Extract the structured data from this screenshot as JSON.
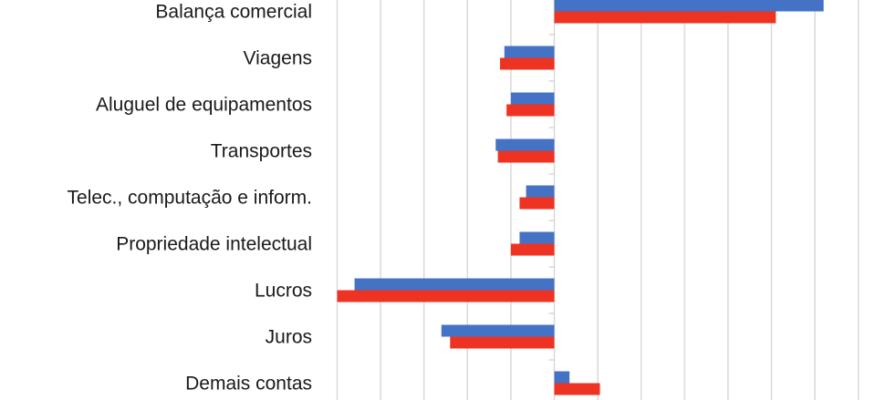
{
  "chart_data": {
    "type": "bar",
    "orientation": "horizontal",
    "categories": [
      "Balança comercial",
      "Viagens",
      "Aluguel de equipamentos",
      "Transportes",
      "Telec., computação e inform.",
      "Propriedade intelectual",
      "Lucros",
      "Juros",
      "Demais contas"
    ],
    "series": [
      {
        "color": "#4472C4",
        "values": [
          62,
          -11.5,
          -10,
          -13.5,
          -6.5,
          -8,
          -46,
          -26,
          3.5
        ]
      },
      {
        "color": "#EE3322",
        "values": [
          51,
          -12.5,
          -11,
          -13,
          -8,
          -10,
          -50,
          -24,
          10.5
        ]
      }
    ],
    "xlim": [
      -50,
      70
    ],
    "x_grid_step": 10,
    "grid": true,
    "legend": "none"
  }
}
